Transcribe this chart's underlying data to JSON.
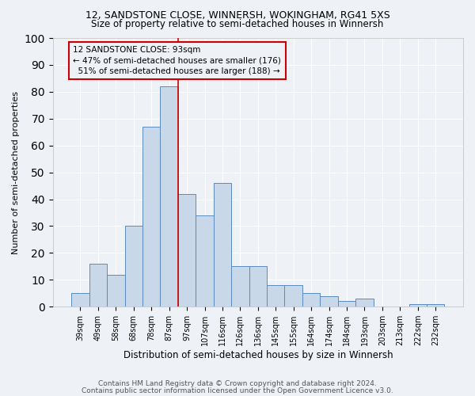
{
  "title1": "12, SANDSTONE CLOSE, WINNERSH, WOKINGHAM, RG41 5XS",
  "title2": "Size of property relative to semi-detached houses in Winnersh",
  "xlabel": "Distribution of semi-detached houses by size in Winnersh",
  "ylabel": "Number of semi-detached properties",
  "categories": [
    "39sqm",
    "49sqm",
    "58sqm",
    "68sqm",
    "78sqm",
    "87sqm",
    "97sqm",
    "107sqm",
    "116sqm",
    "126sqm",
    "136sqm",
    "145sqm",
    "155sqm",
    "164sqm",
    "174sqm",
    "184sqm",
    "193sqm",
    "203sqm",
    "213sqm",
    "222sqm",
    "232sqm"
  ],
  "values": [
    5,
    16,
    12,
    30,
    67,
    82,
    42,
    34,
    46,
    15,
    15,
    8,
    8,
    5,
    4,
    2,
    3,
    0,
    0,
    1,
    1
  ],
  "bar_color": "#c8d8e8",
  "bar_edge_color": "#5a8abf",
  "vline_color": "#cc0000",
  "vline_x": 5.5,
  "ylim": [
    0,
    100
  ],
  "yticks": [
    0,
    10,
    20,
    30,
    40,
    50,
    60,
    70,
    80,
    90,
    100
  ],
  "bg_color": "#eef2f7",
  "grid_color": "#ffffff",
  "property_label": "12 SANDSTONE CLOSE: 93sqm",
  "pct_smaller": 47,
  "count_smaller": 176,
  "pct_larger": 51,
  "count_larger": 188,
  "footer1": "Contains HM Land Registry data © Crown copyright and database right 2024.",
  "footer2": "Contains public sector information licensed under the Open Government Licence v3.0.",
  "title1_fontsize": 9,
  "title2_fontsize": 8.5,
  "xlabel_fontsize": 8.5,
  "ylabel_fontsize": 8,
  "tick_fontsize": 7,
  "ann_fontsize": 7.5,
  "footer_fontsize": 6.5
}
